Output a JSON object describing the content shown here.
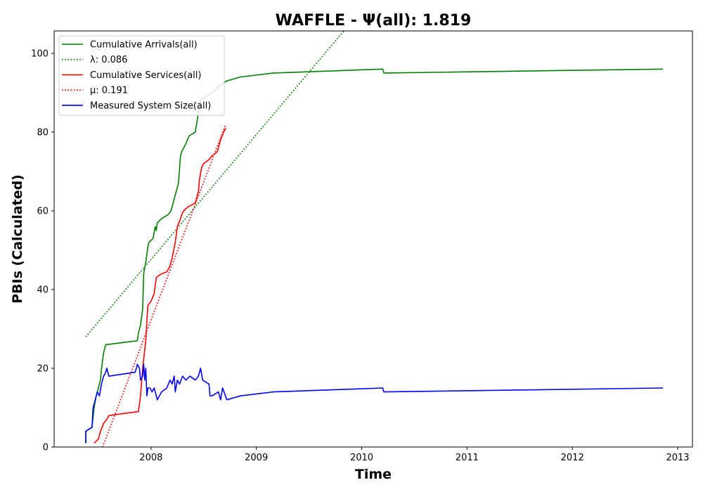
{
  "chart_data": {
    "type": "line",
    "title": "WAFFLE -  Ψ(all): 1.819",
    "xlabel": "Time",
    "ylabel": "PBIs (Calculated)",
    "xlim": [
      2007.08,
      2013.14
    ],
    "ylim": [
      0,
      105.7
    ],
    "x_ticks": [
      2008,
      2009,
      2010,
      2011,
      2012,
      2013
    ],
    "x_tick_labels": [
      "2008",
      "2009",
      "2010",
      "2011",
      "2012",
      "2013"
    ],
    "y_ticks": [
      0,
      20,
      40,
      60,
      80,
      100
    ],
    "y_tick_labels": [
      "0",
      "20",
      "40",
      "60",
      "80",
      "100"
    ],
    "grid": false,
    "legend_position": "top-left",
    "series": [
      {
        "name": "Cumulative Arrivals(all)",
        "color": "#008000",
        "style": "solid",
        "x": [
          2007.38,
          2007.38,
          2007.44,
          2007.46,
          2007.48,
          2007.5,
          2007.52,
          2007.53,
          2007.55,
          2007.57,
          2007.87,
          2007.88,
          2007.9,
          2007.92,
          2007.93,
          2007.95,
          2007.97,
          2007.98,
          2008.02,
          2008.04,
          2008.05,
          2008.06,
          2008.1,
          2008.16,
          2008.19,
          2008.2,
          2008.24,
          2008.26,
          2008.28,
          2008.29,
          2008.33,
          2008.36,
          2008.42,
          2008.45,
          2008.47,
          2008.52,
          2008.58,
          2008.66,
          2008.72,
          2008.85,
          2009.16,
          2010.2,
          2010.21,
          2012.86
        ],
        "y": [
          1,
          4,
          5,
          10,
          13,
          15,
          17,
          20,
          24,
          26,
          27,
          29,
          31,
          35,
          44,
          47,
          51,
          52,
          53,
          56,
          55,
          57,
          58,
          59,
          60,
          61,
          65,
          67,
          74,
          75,
          77,
          79,
          80,
          85,
          88,
          89,
          90,
          92,
          93,
          94,
          95,
          96,
          95,
          96
        ]
      },
      {
        "name": "λ: 0.086",
        "color": "#008000",
        "style": "dotted",
        "x": [
          2007.38,
          2009.84
        ],
        "y": [
          28,
          106
        ]
      },
      {
        "name": "Cumulative Services(all)",
        "color": "#ff0000",
        "style": "solid",
        "x": [
          2007.46,
          2007.5,
          2007.52,
          2007.55,
          2007.58,
          2007.6,
          2007.88,
          2007.9,
          2007.92,
          2007.95,
          2007.96,
          2007.97,
          2008.0,
          2008.03,
          2008.05,
          2008.07,
          2008.1,
          2008.15,
          2008.18,
          2008.2,
          2008.23,
          2008.25,
          2008.28,
          2008.29,
          2008.31,
          2008.35,
          2008.42,
          2008.45,
          2008.46,
          2008.48,
          2008.5,
          2008.55,
          2008.58,
          2008.63,
          2008.66,
          2008.69,
          2008.71
        ],
        "y": [
          1,
          2,
          4,
          6,
          7,
          8,
          9,
          13,
          20,
          27,
          32,
          36,
          37,
          39,
          43,
          43.5,
          44,
          44.5,
          46,
          48,
          52,
          56,
          58,
          59,
          60,
          61,
          62,
          65,
          68,
          71,
          72,
          73,
          74,
          75,
          78,
          80,
          81
        ]
      },
      {
        "name": "μ: 0.191",
        "color": "#ff0000",
        "style": "dotted",
        "x": [
          2007.54,
          2008.71
        ],
        "y": [
          0,
          82
        ]
      },
      {
        "name": "Measured System Size(all)",
        "color": "#0000ff",
        "style": "solid",
        "x": [
          2007.38,
          2007.38,
          2007.44,
          2007.45,
          2007.47,
          2007.49,
          2007.51,
          2007.53,
          2007.55,
          2007.57,
          2007.58,
          2007.6,
          2007.85,
          2007.87,
          2007.89,
          2007.9,
          2007.92,
          2007.93,
          2007.94,
          2007.95,
          2007.96,
          2007.97,
          2007.99,
          2008.01,
          2008.03,
          2008.05,
          2008.06,
          2008.1,
          2008.15,
          2008.18,
          2008.2,
          2008.22,
          2008.23,
          2008.25,
          2008.27,
          2008.3,
          2008.33,
          2008.37,
          2008.42,
          2008.45,
          2008.47,
          2008.49,
          2008.55,
          2008.56,
          2008.58,
          2008.64,
          2008.66,
          2008.68,
          2008.72,
          2008.85,
          2009.16,
          2010.2,
          2010.21,
          2012.86
        ],
        "y": [
          1,
          4,
          5,
          10,
          12,
          14,
          13,
          16,
          18,
          19,
          20,
          18,
          19,
          21,
          20,
          17,
          18,
          21,
          17,
          20,
          13,
          15,
          15,
          14,
          15,
          13,
          12,
          14,
          15,
          17,
          16,
          18,
          14,
          17,
          16,
          18,
          17,
          18,
          17,
          18,
          20,
          17,
          16,
          13,
          13,
          14,
          12,
          15,
          12,
          13,
          14,
          15,
          14,
          15
        ]
      }
    ]
  }
}
